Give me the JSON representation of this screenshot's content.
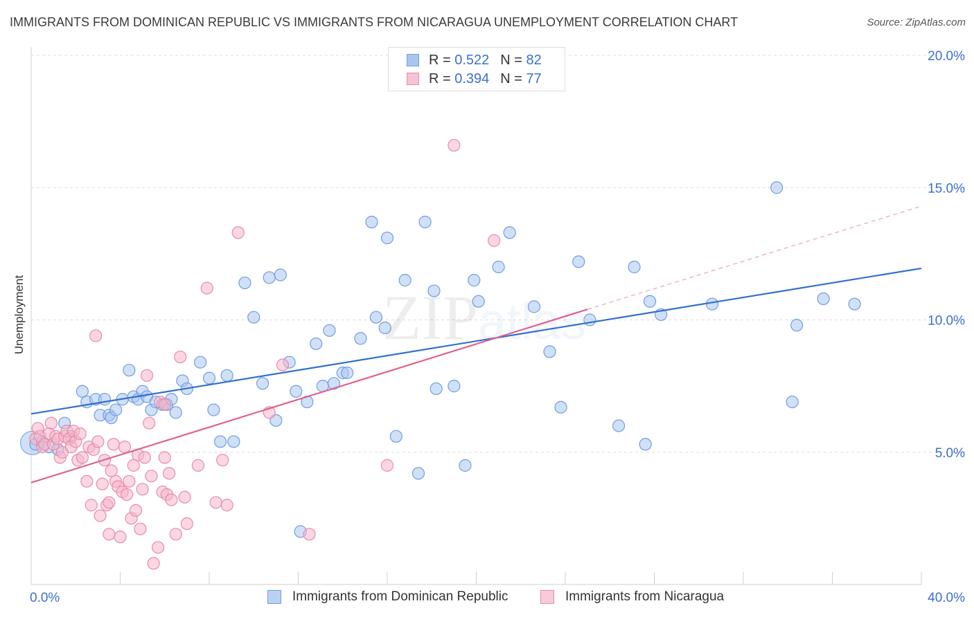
{
  "title": "IMMIGRANTS FROM DOMINICAN REPUBLIC VS IMMIGRANTS FROM NICARAGUA UNEMPLOYMENT CORRELATION CHART",
  "source": "Source: ZipAtlas.com",
  "watermark": "ZIPatlas",
  "legend": {
    "r_label": "R =",
    "n_label": "N =",
    "series": [
      {
        "r": "0.522",
        "n": "82"
      },
      {
        "r": "0.394",
        "n": "77"
      }
    ]
  },
  "colors": {
    "blue_fill": "#a9c6f0",
    "blue_stroke": "#6f9de0",
    "blue_line": "#2f6fd0",
    "pink_fill": "#f5b6ca",
    "pink_stroke": "#e98aa9",
    "pink_line": "#e0608f",
    "tick_text": "#3b6fd0"
  },
  "chart_data": {
    "type": "scatter",
    "title": "IMMIGRANTS FROM DOMINICAN REPUBLIC VS IMMIGRANTS FROM NICARAGUA UNEMPLOYMENT CORRELATION CHART",
    "xlabel": "",
    "ylabel": "Unemployment",
    "xlim": [
      0,
      40
    ],
    "ylim": [
      0,
      20
    ],
    "x_tick_labels": [
      "0.0%",
      "40.0%"
    ],
    "y_tick_labels": [
      "5.0%",
      "10.0%",
      "15.0%",
      "20.0%"
    ],
    "y_ticks": [
      5,
      10,
      15,
      20
    ],
    "grid": true,
    "legend_position": "top-center",
    "series": [
      {
        "name": "Immigrants from Dominican Republic",
        "color": "#a9c6f0",
        "r": 0.522,
        "n": 82,
        "trend": {
          "x": [
            0,
            40
          ],
          "y": [
            6.45,
            11.95
          ]
        },
        "points": [
          [
            0.2,
            5.3
          ],
          [
            0.5,
            5.4
          ],
          [
            0.8,
            5.2
          ],
          [
            1.2,
            5.1
          ],
          [
            1.5,
            6.1
          ],
          [
            1.8,
            5.6
          ],
          [
            2.3,
            7.3
          ],
          [
            2.5,
            6.9
          ],
          [
            2.9,
            7.0
          ],
          [
            3.1,
            6.4
          ],
          [
            3.3,
            7.0
          ],
          [
            3.5,
            6.4
          ],
          [
            3.6,
            6.3
          ],
          [
            3.8,
            6.6
          ],
          [
            4.1,
            7.0
          ],
          [
            4.4,
            8.1
          ],
          [
            4.6,
            7.1
          ],
          [
            4.8,
            7.0
          ],
          [
            5.0,
            7.3
          ],
          [
            5.2,
            7.1
          ],
          [
            5.4,
            6.6
          ],
          [
            5.6,
            6.9
          ],
          [
            5.9,
            6.8
          ],
          [
            6.1,
            6.8
          ],
          [
            6.3,
            7.0
          ],
          [
            6.5,
            6.5
          ],
          [
            6.8,
            7.7
          ],
          [
            7.0,
            7.4
          ],
          [
            7.6,
            8.4
          ],
          [
            8.0,
            7.8
          ],
          [
            8.2,
            6.6
          ],
          [
            8.5,
            5.4
          ],
          [
            8.8,
            7.9
          ],
          [
            9.1,
            5.4
          ],
          [
            9.6,
            11.4
          ],
          [
            10.0,
            10.1
          ],
          [
            10.4,
            7.6
          ],
          [
            10.7,
            11.6
          ],
          [
            11.0,
            6.2
          ],
          [
            11.2,
            11.7
          ],
          [
            11.6,
            8.4
          ],
          [
            11.9,
            7.3
          ],
          [
            12.1,
            2.0
          ],
          [
            12.4,
            6.9
          ],
          [
            12.8,
            9.1
          ],
          [
            13.1,
            7.5
          ],
          [
            13.4,
            9.6
          ],
          [
            13.6,
            7.6
          ],
          [
            14.0,
            8.0
          ],
          [
            14.2,
            8.0
          ],
          [
            14.8,
            9.3
          ],
          [
            15.3,
            13.7
          ],
          [
            15.5,
            10.1
          ],
          [
            15.9,
            9.7
          ],
          [
            16.0,
            13.1
          ],
          [
            16.4,
            5.6
          ],
          [
            16.8,
            11.5
          ],
          [
            17.4,
            4.2
          ],
          [
            17.7,
            13.7
          ],
          [
            18.1,
            11.1
          ],
          [
            18.2,
            7.4
          ],
          [
            19.0,
            7.5
          ],
          [
            19.5,
            4.5
          ],
          [
            19.9,
            11.5
          ],
          [
            20.1,
            10.7
          ],
          [
            21.0,
            12.0
          ],
          [
            21.5,
            13.3
          ],
          [
            22.6,
            10.5
          ],
          [
            23.3,
            8.8
          ],
          [
            23.8,
            6.7
          ],
          [
            24.6,
            12.2
          ],
          [
            25.1,
            10.0
          ],
          [
            26.4,
            6.0
          ],
          [
            27.1,
            12.0
          ],
          [
            27.6,
            5.3
          ],
          [
            27.8,
            10.7
          ],
          [
            28.3,
            10.2
          ],
          [
            30.6,
            10.6
          ],
          [
            33.5,
            15.0
          ],
          [
            34.2,
            6.9
          ],
          [
            34.4,
            9.8
          ],
          [
            35.6,
            10.8
          ],
          [
            37.0,
            10.6
          ]
        ]
      },
      {
        "name": "Immigrants from Nicaragua",
        "color": "#f5b6ca",
        "r": 0.394,
        "n": 77,
        "trend": {
          "x": [
            0,
            25.0
          ],
          "y": [
            3.85,
            10.4
          ]
        },
        "trend_dashed_extension": {
          "x": [
            25.0,
            40
          ],
          "y": [
            10.4,
            14.3
          ]
        },
        "points": [
          [
            0.2,
            5.5
          ],
          [
            0.3,
            5.9
          ],
          [
            0.4,
            5.6
          ],
          [
            0.5,
            5.2
          ],
          [
            0.6,
            5.3
          ],
          [
            0.8,
            5.7
          ],
          [
            0.9,
            6.1
          ],
          [
            1.0,
            5.3
          ],
          [
            1.1,
            5.6
          ],
          [
            1.2,
            5.5
          ],
          [
            1.3,
            4.8
          ],
          [
            1.4,
            5.0
          ],
          [
            1.5,
            5.6
          ],
          [
            1.6,
            5.8
          ],
          [
            1.7,
            5.5
          ],
          [
            1.8,
            5.2
          ],
          [
            1.9,
            5.8
          ],
          [
            2.0,
            5.4
          ],
          [
            2.1,
            4.7
          ],
          [
            2.2,
            5.7
          ],
          [
            2.3,
            4.8
          ],
          [
            2.5,
            3.9
          ],
          [
            2.6,
            5.2
          ],
          [
            2.7,
            3.0
          ],
          [
            2.8,
            5.1
          ],
          [
            2.9,
            9.4
          ],
          [
            3.0,
            5.4
          ],
          [
            3.1,
            2.6
          ],
          [
            3.2,
            3.8
          ],
          [
            3.3,
            4.7
          ],
          [
            3.4,
            3.0
          ],
          [
            3.5,
            3.1
          ],
          [
            3.6,
            4.3
          ],
          [
            3.7,
            5.3
          ],
          [
            3.8,
            3.9
          ],
          [
            3.9,
            3.7
          ],
          [
            4.0,
            1.8
          ],
          [
            4.1,
            3.5
          ],
          [
            4.2,
            5.2
          ],
          [
            4.3,
            3.4
          ],
          [
            4.4,
            3.9
          ],
          [
            4.5,
            2.5
          ],
          [
            4.6,
            4.5
          ],
          [
            4.7,
            2.8
          ],
          [
            4.8,
            4.9
          ],
          [
            4.9,
            2.1
          ],
          [
            5.0,
            3.6
          ],
          [
            5.1,
            4.8
          ],
          [
            5.3,
            6.1
          ],
          [
            5.4,
            4.1
          ],
          [
            5.5,
            0.8
          ],
          [
            5.7,
            1.4
          ],
          [
            5.8,
            6.9
          ],
          [
            5.9,
            3.5
          ],
          [
            6.0,
            6.8
          ],
          [
            6.1,
            3.4
          ],
          [
            6.2,
            4.2
          ],
          [
            6.3,
            3.2
          ],
          [
            6.5,
            1.9
          ],
          [
            6.7,
            8.6
          ],
          [
            6.9,
            3.3
          ],
          [
            7.0,
            2.3
          ],
          [
            7.5,
            4.5
          ],
          [
            7.9,
            11.2
          ],
          [
            8.3,
            3.1
          ],
          [
            8.6,
            4.7
          ],
          [
            8.8,
            3.0
          ],
          [
            9.3,
            13.3
          ],
          [
            10.7,
            6.5
          ],
          [
            11.3,
            8.3
          ],
          [
            12.5,
            1.9
          ],
          [
            16.0,
            4.5
          ],
          [
            19.0,
            16.6
          ],
          [
            20.8,
            13.0
          ],
          [
            3.5,
            1.9
          ],
          [
            6.0,
            4.8
          ],
          [
            5.2,
            7.9
          ]
        ]
      }
    ]
  },
  "bottom_legend": [
    {
      "label": "Immigrants from Dominican Republic"
    },
    {
      "label": "Immigrants from Nicaragua"
    }
  ]
}
